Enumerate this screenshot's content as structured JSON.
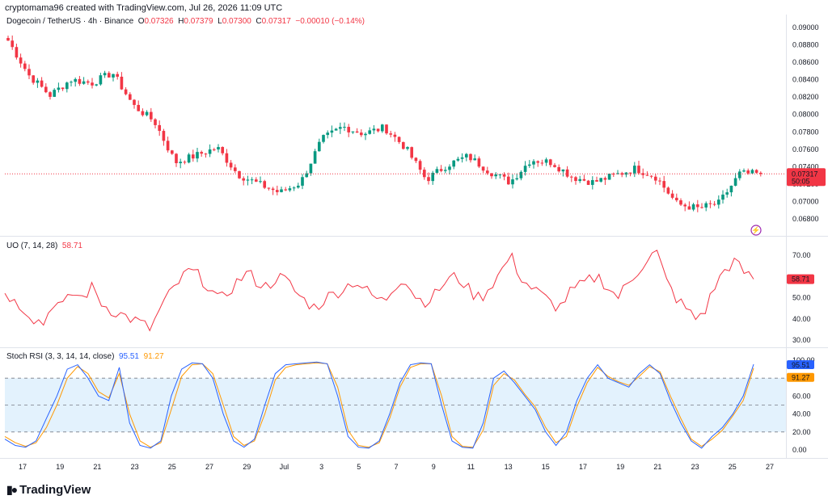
{
  "header": {
    "credit": "cryptomama96 created with TradingView.com, Jul 26, 2026 11:09 UTC"
  },
  "price_legend": {
    "symbol": "Dogecoin / TetherUS · 4h · Binance",
    "o_label": "O",
    "o": "0.07326",
    "h_label": "H",
    "h": "0.07379",
    "l_label": "L",
    "l": "0.07300",
    "c_label": "C",
    "c": "0.07317",
    "change": "−0.00010 (−0.14%)"
  },
  "uo_legend": {
    "name": "UO (7, 14, 28)",
    "value": "58.71"
  },
  "stoch_legend": {
    "name": "Stoch RSI (3, 3, 14, 14, close)",
    "k": "95.51",
    "d": "91.27"
  },
  "price_axis": [
    "0.09000",
    "0.08800",
    "0.08600",
    "0.08400",
    "0.08200",
    "0.08000",
    "0.07800",
    "0.07600",
    "0.07400",
    "0.07200",
    "0.07000",
    "0.06800"
  ],
  "price_badge": {
    "price": "0.07317",
    "countdown": "50:05"
  },
  "uo_axis": [
    "70.00",
    "50.00",
    "40.00",
    "30.00"
  ],
  "uo_badge": "58.71",
  "stoch_axis": [
    "100.00",
    "80.00",
    "60.00",
    "40.00",
    "20.00",
    "0.00"
  ],
  "stoch_badges": {
    "k": "95.51",
    "d": "91.27"
  },
  "time_axis": [
    "17",
    "19",
    "21",
    "23",
    "25",
    "27",
    "29",
    "Jul",
    "3",
    "5",
    "7",
    "9",
    "11",
    "13",
    "15",
    "17",
    "19",
    "21",
    "23",
    "25",
    "27"
  ],
  "brand": "TradingView",
  "colors": {
    "up": "#089981",
    "down": "#f23645",
    "uo": "#f23645",
    "k": "#2962ff",
    "d": "#ff9800",
    "band": "#e3f2fd"
  },
  "chart_data": [
    {
      "type": "candlestick",
      "title": "Dogecoin / TetherUS · 4h · Binance",
      "timeframe": "4h",
      "ylim": [
        0.068,
        0.09
      ],
      "x_ticks": [
        "17",
        "19",
        "21",
        "23",
        "25",
        "27",
        "29",
        "Jul",
        "3",
        "5",
        "7",
        "9",
        "11",
        "13",
        "15",
        "17",
        "19",
        "21",
        "23",
        "25",
        "27"
      ],
      "key_closes": [
        [
          "Jun 16",
          0.0885
        ],
        [
          "Jun 18",
          0.0845
        ],
        [
          "Jun 19",
          0.0822
        ],
        [
          "Jun 20",
          0.084
        ],
        [
          "Jun 22",
          0.0836
        ],
        [
          "Jun 22",
          0.0848
        ],
        [
          "Jun 23",
          0.081
        ],
        [
          "Jun 24",
          0.0792
        ],
        [
          "Jun 25",
          0.0745
        ],
        [
          "Jun 26",
          0.0753
        ],
        [
          "Jun 27",
          0.0762
        ],
        [
          "Jun 28",
          0.0731
        ],
        [
          "Jun 29",
          0.072
        ],
        [
          "Jun 30",
          0.071
        ],
        [
          "Jul 1",
          0.0722
        ],
        [
          "Jul 3",
          0.0771
        ],
        [
          "Jul 4",
          0.0786
        ],
        [
          "Jul 5",
          0.0778
        ],
        [
          "Jul 6",
          0.0785
        ],
        [
          "Jul 7",
          0.0762
        ],
        [
          "Jul 8",
          0.0725
        ],
        [
          "Jul 10",
          0.0742
        ],
        [
          "Jul 11",
          0.0752
        ],
        [
          "Jul 12",
          0.0735
        ],
        [
          "Jul 13",
          0.0722
        ],
        [
          "Jul 14",
          0.0748
        ],
        [
          "Jul 15",
          0.0745
        ],
        [
          "Jul 16",
          0.0728
        ],
        [
          "Jul 18",
          0.0722
        ],
        [
          "Jul 20",
          0.073
        ],
        [
          "Jul 21",
          0.0738
        ],
        [
          "Jul 22",
          0.0728
        ],
        [
          "Jul 23",
          0.0697
        ],
        [
          "Jul 24",
          0.0692
        ],
        [
          "Jul 25",
          0.0698
        ],
        [
          "Jul 25",
          0.0732
        ],
        [
          "Jul 26",
          0.07317
        ]
      ],
      "last": {
        "open": 0.07326,
        "high": 0.07379,
        "low": 0.073,
        "close": 0.07317
      }
    },
    {
      "type": "line",
      "title": "UO (7, 14, 28)",
      "ylim": [
        30,
        70
      ],
      "series": [
        {
          "name": "UO",
          "values": [
            53,
            48,
            45,
            40,
            38,
            48,
            46,
            52,
            50,
            55,
            47,
            44,
            42,
            40,
            38,
            35,
            45,
            52,
            58,
            63,
            60,
            55,
            48,
            53,
            58,
            62,
            57,
            55,
            60,
            58,
            52,
            48,
            45,
            50,
            52,
            55,
            58,
            54,
            50,
            48,
            55,
            60,
            52,
            48,
            50,
            56,
            60,
            58,
            52,
            50,
            56,
            62,
            70,
            60,
            55,
            52,
            48,
            45,
            52,
            55,
            58,
            60,
            55,
            50,
            56,
            62,
            68,
            72,
            58,
            50,
            45,
            40,
            44,
            55,
            63,
            67,
            62,
            58.71
          ]
        }
      ],
      "last": 58.71
    },
    {
      "type": "line",
      "title": "Stoch RSI (3, 3, 14, 14, close)",
      "ylim": [
        0,
        100
      ],
      "bands": [
        20,
        50,
        80
      ],
      "series": [
        {
          "name": "K",
          "values": [
            12,
            5,
            3,
            10,
            35,
            60,
            90,
            95,
            80,
            60,
            55,
            92,
            30,
            5,
            2,
            10,
            60,
            90,
            97,
            96,
            80,
            40,
            10,
            3,
            12,
            50,
            85,
            95,
            96,
            97,
            98,
            96,
            60,
            15,
            3,
            2,
            10,
            40,
            75,
            95,
            97,
            96,
            50,
            10,
            3,
            2,
            30,
            80,
            88,
            75,
            60,
            45,
            20,
            5,
            20,
            55,
            80,
            95,
            80,
            75,
            70,
            85,
            95,
            85,
            55,
            30,
            10,
            2,
            15,
            25,
            40,
            60,
            95.51
          ]
        },
        {
          "name": "D",
          "values": [
            15,
            8,
            4,
            8,
            25,
            50,
            80,
            93,
            85,
            65,
            58,
            85,
            40,
            10,
            3,
            8,
            45,
            82,
            95,
            96,
            85,
            50,
            15,
            5,
            10,
            40,
            78,
            92,
            95,
            96,
            97,
            96,
            70,
            22,
            5,
            3,
            8,
            35,
            70,
            92,
            96,
            96,
            60,
            15,
            4,
            3,
            22,
            72,
            85,
            78,
            62,
            48,
            25,
            8,
            15,
            48,
            75,
            92,
            82,
            76,
            72,
            82,
            93,
            87,
            60,
            35,
            12,
            4,
            12,
            22,
            38,
            55,
            91.27
          ]
        }
      ],
      "last": {
        "K": 95.51,
        "D": 91.27
      }
    }
  ]
}
